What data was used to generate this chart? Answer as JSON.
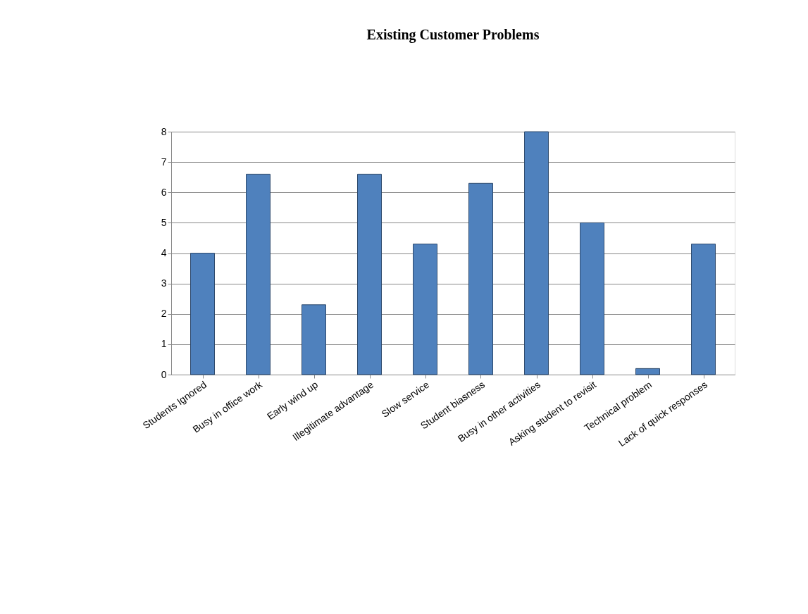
{
  "chart_data": {
    "type": "bar",
    "title": "Existing Customer Problems",
    "categories": [
      "Students Ignored",
      "Busy in office work",
      "Early wind up",
      "Illegitimate advantage",
      "Slow service",
      "Student biasness",
      "Busy in other activities",
      "Asking student  to revisit",
      "Technical problem",
      "Lack of quick responses"
    ],
    "values": [
      4,
      6.6,
      2.3,
      6.6,
      4.3,
      6.3,
      8,
      5,
      0.2,
      4.3
    ],
    "color": "#4f81bd",
    "ylim": [
      0,
      8
    ],
    "yticks": [
      0,
      1,
      2,
      3,
      4,
      5,
      6,
      7,
      8
    ],
    "grid": "y"
  }
}
